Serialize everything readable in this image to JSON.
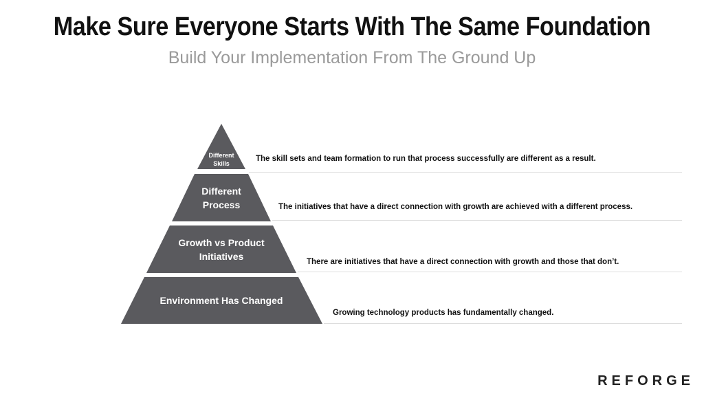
{
  "header": {
    "title": "Make Sure Everyone Starts With The Same Foundation",
    "subtitle": "Build Your Implementation From The Ground Up"
  },
  "pyramid": {
    "fill_color": "#5a5a5e",
    "tiers": [
      {
        "label_lines": [
          "Different",
          "Skills"
        ],
        "description": "The skill sets and team formation to run that process successfully are different as a result."
      },
      {
        "label_lines": [
          "Different",
          "Process"
        ],
        "description": "The initiatives that have a direct connection with growth are achieved with a different process."
      },
      {
        "label_lines": [
          "Growth vs Product",
          "Initiatives"
        ],
        "description": "There are initiatives that have a direct connection with growth and those that don’t."
      },
      {
        "label_lines": [
          "Environment Has Changed"
        ],
        "description": "Growing technology products has fundamentally changed."
      }
    ]
  },
  "brand": "REFORGE"
}
